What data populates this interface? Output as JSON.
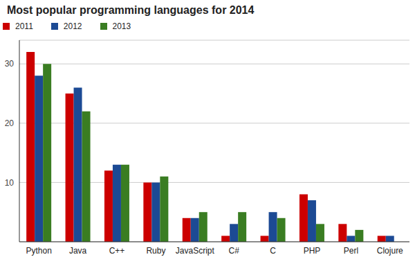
{
  "chart_data": {
    "type": "bar",
    "title": "Most popular programming languages for 2014",
    "categories": [
      "Python",
      "Java",
      "C++",
      "Ruby",
      "JavaScript",
      "C#",
      "C",
      "PHP",
      "Perl",
      "Clojure"
    ],
    "series": [
      {
        "name": "2011",
        "color": "#cc0000",
        "values": [
          32,
          25,
          12,
          10,
          4,
          1,
          1,
          8,
          3,
          1
        ]
      },
      {
        "name": "2012",
        "color": "#1c4a94",
        "values": [
          28,
          26,
          13,
          10,
          4,
          3,
          5,
          7,
          1,
          1
        ]
      },
      {
        "name": "2013",
        "color": "#3a7d22",
        "values": [
          30,
          22,
          13,
          11,
          5,
          5,
          4,
          3,
          2,
          0
        ]
      }
    ],
    "ylim": [
      0,
      34
    ],
    "yticks": [
      10,
      20,
      30
    ],
    "grid": true,
    "legend": "top-left"
  }
}
